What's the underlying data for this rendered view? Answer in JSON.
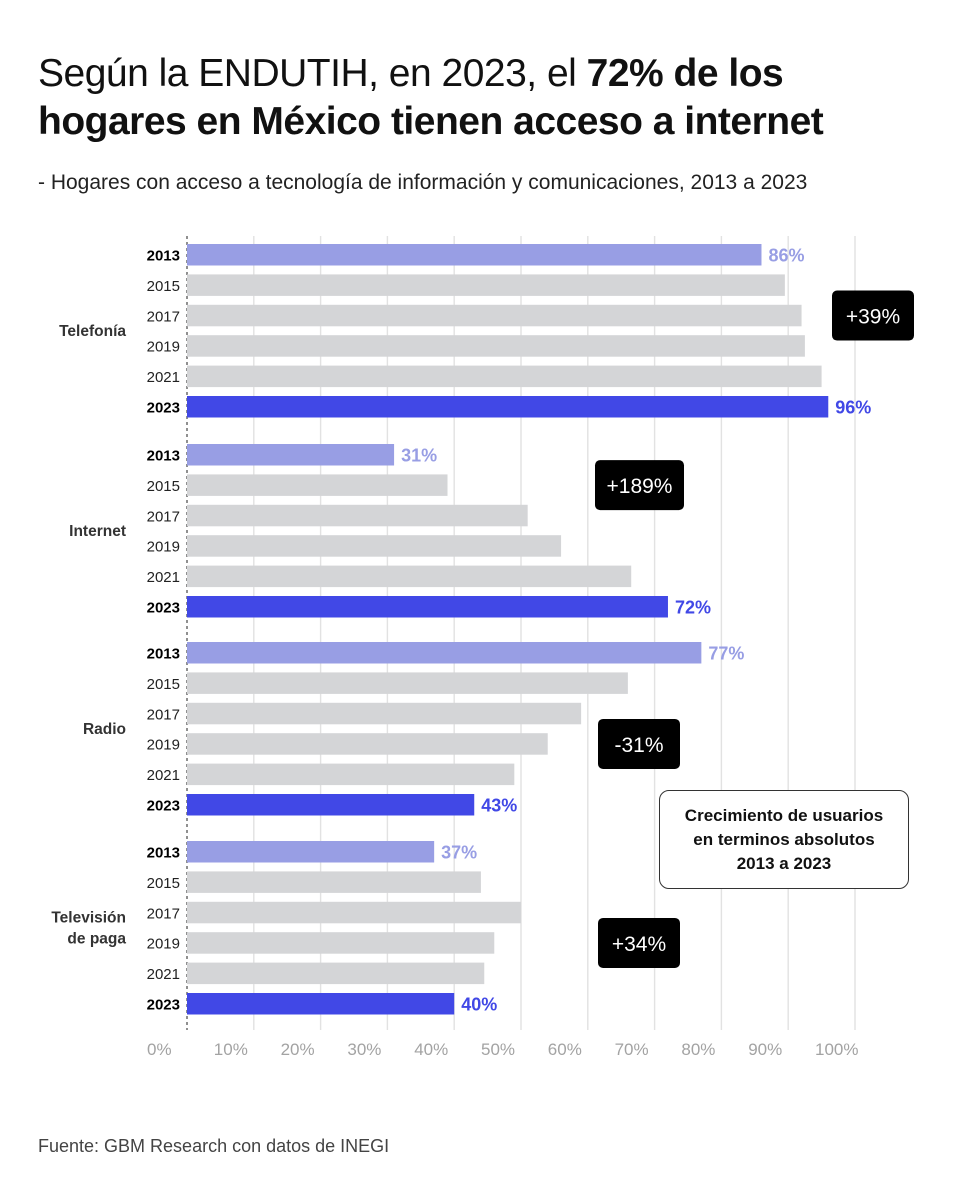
{
  "title": {
    "regular": "Según la ENDUTIH, en 2023, el ",
    "bold": "72% de los hogares en México tienen acceso a internet"
  },
  "subtitle": "- Hogares con acceso a tecnología de información y comunicaciones, 2013 a 2023",
  "source": "Fuente: GBM Research con datos de INEGI",
  "legend_note": "Crecimiento de usuarios\nen terminos absolutos\n2013 a 2023",
  "colors": {
    "first_year": "#989ee4",
    "last_year": "#4148e6",
    "other_years": "#d4d5d7",
    "badge": "#000000"
  },
  "chart_data": {
    "type": "bar",
    "orientation": "horizontal",
    "xlim": [
      0,
      100
    ],
    "x_ticks": [
      "0%",
      "10%",
      "20%",
      "30%",
      "40%",
      "50%",
      "60%",
      "70%",
      "80%",
      "90%",
      "100%"
    ],
    "grid": true,
    "groups": [
      {
        "name": "Telefonía",
        "years": [
          "2013",
          "2015",
          "2017",
          "2019",
          "2021",
          "2023"
        ],
        "values": [
          86,
          89.5,
          92,
          92.5,
          95,
          96
        ],
        "labels": [
          "86%",
          "",
          "",
          "",
          "",
          "96%"
        ],
        "growth": "+39%"
      },
      {
        "name": "Internet",
        "years": [
          "2013",
          "2015",
          "2017",
          "2019",
          "2021",
          "2023"
        ],
        "values": [
          31,
          39,
          51,
          56,
          66.5,
          72
        ],
        "labels": [
          "31%",
          "",
          "",
          "",
          "",
          "72%"
        ],
        "growth": "+189%"
      },
      {
        "name": "Radio",
        "years": [
          "2013",
          "2015",
          "2017",
          "2019",
          "2021",
          "2023"
        ],
        "values": [
          77,
          66,
          59,
          54,
          49,
          43
        ],
        "labels": [
          "77%",
          "",
          "",
          "",
          "",
          "43%"
        ],
        "growth": "-31%"
      },
      {
        "name": "Televisión de paga",
        "years": [
          "2013",
          "2015",
          "2017",
          "2019",
          "2021",
          "2023"
        ],
        "values": [
          37,
          44,
          50,
          46,
          44.5,
          40
        ],
        "labels": [
          "37%",
          "",
          "",
          "",
          "",
          "40%"
        ],
        "growth": "+34%"
      }
    ]
  }
}
